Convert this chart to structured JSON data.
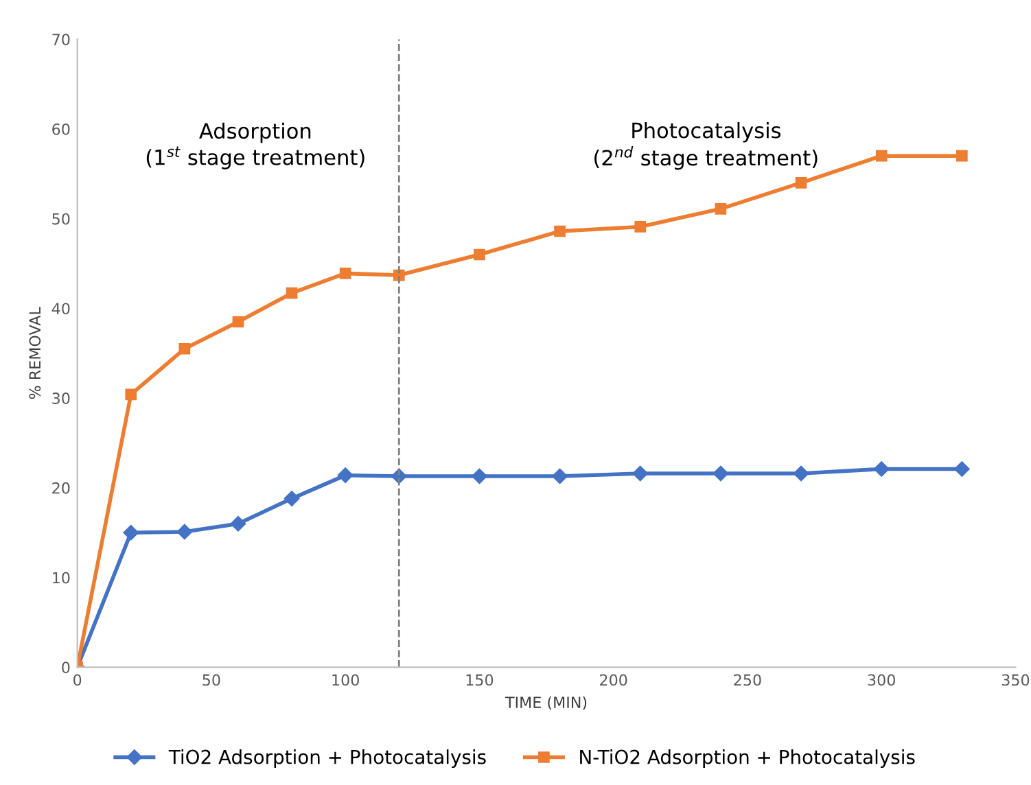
{
  "chart_data": {
    "type": "line",
    "xlabel": "TIME (MIN)",
    "ylabel": "% REMOVAL",
    "x": [
      0,
      20,
      40,
      60,
      80,
      100,
      120,
      150,
      180,
      210,
      240,
      270,
      300,
      330
    ],
    "series": [
      {
        "name": "TiO2 Adsorption + Photocatalysis",
        "color": "#4472c4",
        "marker": "diamond",
        "values": [
          0,
          15,
          15.1,
          16,
          18.8,
          21.4,
          21.3,
          21.3,
          21.3,
          21.6,
          21.6,
          21.6,
          22.1,
          22.1
        ]
      },
      {
        "name": "N-TiO2 Adsorption + Photocatalysis",
        "color": "#ed7d31",
        "marker": "square",
        "values": [
          0,
          30.4,
          35.5,
          38.5,
          41.7,
          43.9,
          43.7,
          46,
          48.6,
          49.1,
          51.1,
          54,
          57,
          57
        ]
      }
    ],
    "xlim": [
      0,
      350
    ],
    "xticks": [
      0,
      50,
      100,
      150,
      200,
      250,
      300,
      350
    ],
    "ylim": [
      0,
      70
    ],
    "yticks": [
      0,
      10,
      20,
      30,
      40,
      50,
      60,
      70
    ],
    "ref_lines": [
      {
        "axis": "x",
        "value": 120,
        "color": "#7f7f7f",
        "line_style": "dashed"
      }
    ],
    "annotations": [
      "Adsorption\n(1$^{st}$ stage treatment)",
      "Photocatalysis\n(2$^{nd}$ stage treatment)"
    ],
    "grid": false,
    "legend": "bottom",
    "line_style": "solid"
  }
}
